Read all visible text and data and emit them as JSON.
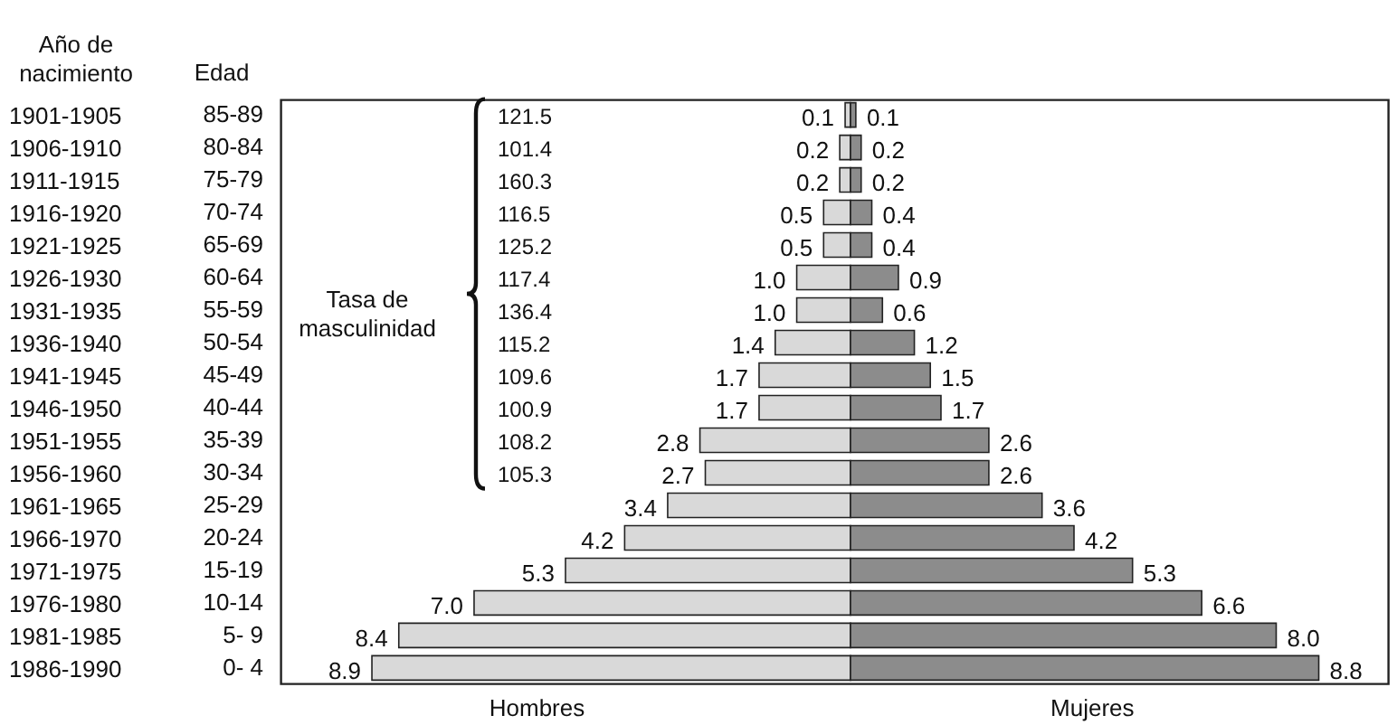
{
  "chart_data": [
    {
      "type": "bar",
      "orientation": "horizontal",
      "ylabel": "Edad",
      "categories": [
        "85-89",
        "80-84",
        "75-79",
        "70-74",
        "65-69",
        "60-64",
        "55-59",
        "50-54",
        "45-49",
        "40-44",
        "35-39",
        "30-34",
        "25-29",
        "20-24",
        "15-19",
        "10-14",
        "5- 9",
        "0- 4"
      ],
      "y2_categories": [
        "1901-1905",
        "1906-1910",
        "1911-1915",
        "1916-1920",
        "1921-1925",
        "1926-1930",
        "1931-1935",
        "1936-1940",
        "1941-1945",
        "1946-1950",
        "1951-1955",
        "1956-1960",
        "1961-1965",
        "1966-1970",
        "1971-1975",
        "1976-1980",
        "1981-1985",
        "1986-1990"
      ],
      "series": [
        {
          "name": "Hombres",
          "color": "#d9d9d9",
          "values": [
            0.1,
            0.2,
            0.2,
            0.5,
            0.5,
            1.0,
            1.0,
            1.4,
            1.7,
            1.7,
            2.8,
            2.7,
            3.4,
            4.2,
            5.3,
            7.0,
            8.4,
            8.9
          ],
          "value_labels": [
            "0.1",
            "0.2",
            "0.2",
            "0.5",
            "0.5",
            "1.0",
            "1.0",
            "1.4",
            "1.7",
            "1.7",
            "2.8",
            "2.7",
            "3.4",
            "4.2",
            "5.3",
            "7.0",
            "8.4",
            "8.9"
          ]
        }
      ],
      "xlim": [
        10.6,
        0
      ],
      "tick_labels": "y",
      "annotations": [
        "Año de\nnacimiento",
        "Tasa de\nmasculinidad",
        "121.5",
        "101.4",
        "160.3",
        "116.5",
        "125.2",
        "117.4",
        "136.4",
        "115.2",
        "109.6",
        "100.9",
        "108.2",
        "105.3"
      ]
    },
    {
      "type": "bar",
      "orientation": "horizontal",
      "categories": [
        "85-89",
        "80-84",
        "75-79",
        "70-74",
        "65-69",
        "60-64",
        "55-59",
        "50-54",
        "45-49",
        "40-44",
        "35-39",
        "30-34",
        "25-29",
        "20-24",
        "15-19",
        "10-14",
        "5- 9",
        "0- 4"
      ],
      "series": [
        {
          "name": "Mujeres",
          "color": "#8c8c8c",
          "values": [
            0.1,
            0.2,
            0.2,
            0.4,
            0.4,
            0.9,
            0.6,
            1.2,
            1.5,
            1.7,
            2.6,
            2.6,
            3.6,
            4.2,
            5.3,
            6.6,
            8.0,
            8.8
          ],
          "value_labels": [
            "0.1",
            "0.2",
            "0.2",
            "0.4",
            "0.4",
            "0.9",
            "0.6",
            "1.2",
            "1.5",
            "1.7",
            "2.6",
            "2.6",
            "3.6",
            "4.2",
            "5.3",
            "6.6",
            "8.0",
            "8.8"
          ]
        }
      ],
      "xlim": [
        0,
        10.1
      ],
      "tick_labels": false
    }
  ]
}
